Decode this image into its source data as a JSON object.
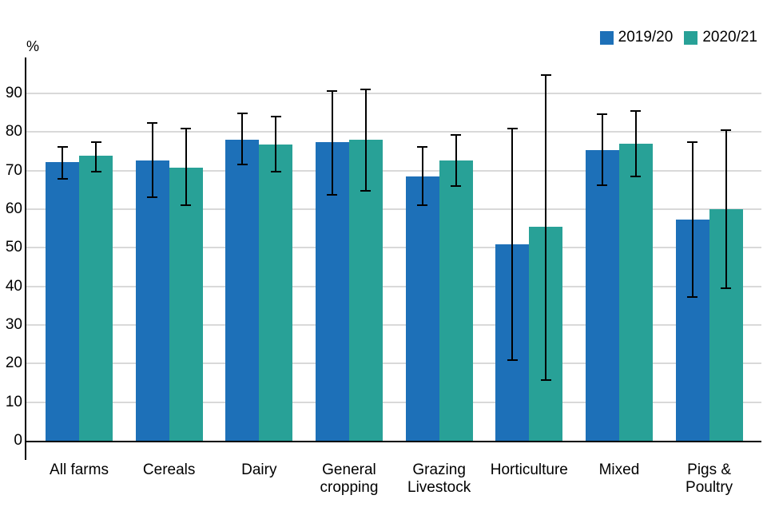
{
  "chart_data": {
    "type": "bar",
    "title": "",
    "ylabel": "%",
    "ylim": [
      0,
      100
    ],
    "yticks": [
      0,
      10,
      20,
      30,
      40,
      50,
      60,
      70,
      80,
      90
    ],
    "grid": true,
    "legend_position": "top-right",
    "error_bars": true,
    "categories": [
      "All farms",
      "Cereals",
      "Dairy",
      "General cropping",
      "Grazing Livestock",
      "Horticulture",
      "Mixed",
      "Pigs & Poultry"
    ],
    "series": [
      {
        "name": "2019/20",
        "color": "#1d70b8",
        "values": [
          72.2,
          72.7,
          78.1,
          77.3,
          68.5,
          50.9,
          75.4,
          57.3
        ],
        "ci_low": [
          67.9,
          63.1,
          71.5,
          63.7,
          61.0,
          20.9,
          66.2,
          37.2
        ],
        "ci_high": [
          76.1,
          82.3,
          84.9,
          90.6,
          76.1,
          80.9,
          84.6,
          77.4
        ]
      },
      {
        "name": "2020/21",
        "color": "#28a197",
        "values": [
          73.8,
          70.8,
          76.8,
          77.9,
          72.6,
          55.4,
          77.0,
          60.0
        ],
        "ci_low": [
          69.7,
          61.0,
          69.7,
          64.8,
          66.0,
          15.7,
          68.5,
          39.5
        ],
        "ci_high": [
          77.3,
          80.9,
          83.9,
          91.0,
          79.2,
          94.8,
          85.4,
          80.5
        ]
      }
    ]
  },
  "colors": {
    "background": "#ffffff",
    "gridline": "#d9d9d9",
    "axis": "#000000",
    "text": "#000000",
    "series_2019_20": "#1d70b8",
    "series_2020_21": "#28a197"
  }
}
